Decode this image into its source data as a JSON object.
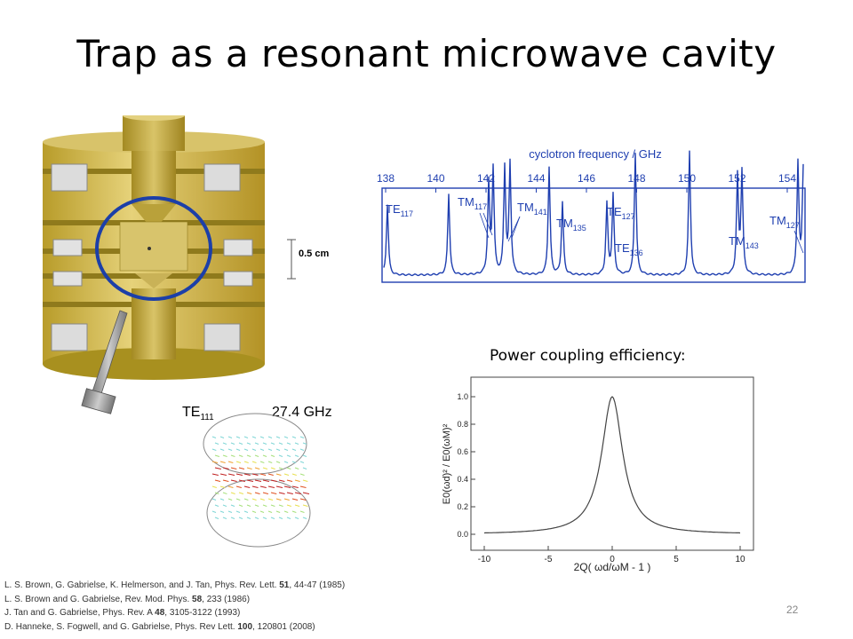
{
  "slide": {
    "title": "Trap as a resonant microwave cavity",
    "page_number": "22",
    "power_coupling_label": "Power coupling efficiency:",
    "scale_bar_label": "0.5 cm",
    "mode_label": {
      "base": "TE",
      "sub": "111"
    },
    "mode_frequency": "27.4 GHz"
  },
  "spectrum": {
    "axis_title": "cyclotron frequency / GHz",
    "ticks": [
      "138",
      "140",
      "142",
      "144",
      "146",
      "148",
      "150",
      "152",
      "154"
    ],
    "peak_labels": [
      {
        "base": "TE",
        "sub": "117"
      },
      {
        "base": "TM",
        "sub": "117"
      },
      {
        "base": "TM",
        "sub": "141"
      },
      {
        "base": "TM",
        "sub": "135"
      },
      {
        "base": "TE",
        "sub": "127"
      },
      {
        "base": "TE",
        "sub": "136"
      },
      {
        "base": "TM",
        "sub": "143"
      },
      {
        "base": "TM",
        "sub": "127"
      }
    ],
    "color": "#1f3fb0"
  },
  "coupling_plot": {
    "ylabel": "E0(ωd)² / E0(ωM)²",
    "xlabel": "2Q( ωd/ωM - 1 )",
    "xticks": [
      "-10",
      "-5",
      "0",
      "5",
      "10"
    ],
    "yticks": [
      "0.0",
      "0.2",
      "0.4",
      "0.6",
      "0.8",
      "1.0"
    ]
  },
  "references": [
    {
      "pre": "L. S. Brown, G. Gabrielse, K. Helmerson, and J. Tan, Phys. Rev. Lett. ",
      "vol": "51",
      "post": ", 44-47 (1985)"
    },
    {
      "pre": "L. S. Brown and G. Gabrielse, Rev. Mod. Phys. ",
      "vol": "58",
      "post": ", 233 (1986)"
    },
    {
      "pre": "J. Tan and G. Gabrielse, Phys. Rev. A ",
      "vol": "48",
      "post": ", 3105-3122 (1993)"
    },
    {
      "pre": "D. Hanneke, S. Fogwell, and G. Gabrielse, Phys. Rev Lett. ",
      "vol": "100",
      "post": ", 120801 (2008)"
    }
  ]
}
